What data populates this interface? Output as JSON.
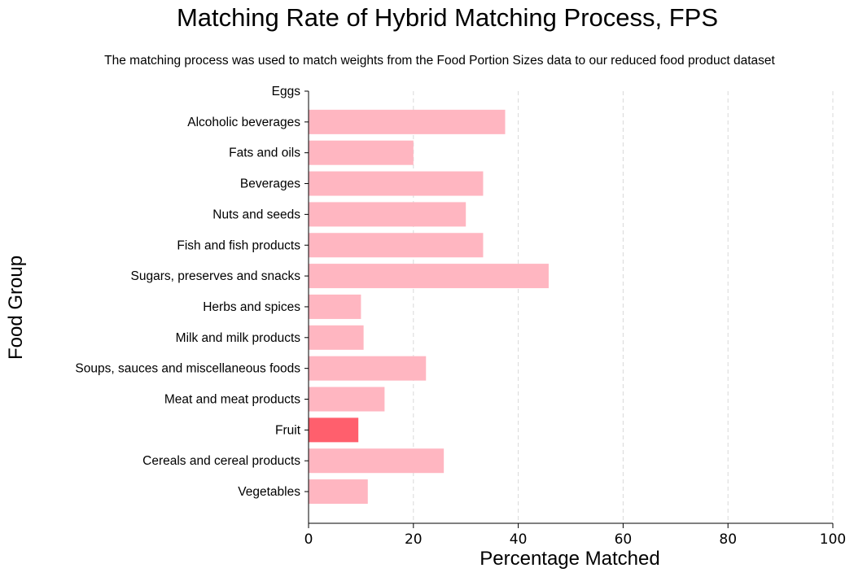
{
  "chart_data": {
    "type": "bar",
    "orientation": "horizontal",
    "title": "Matching Rate of Hybrid Matching Process, FPS",
    "subtitle": "The matching process was used to match weights from the Food Portion Sizes data to our reduced food product dataset",
    "xlabel": "Percentage Matched",
    "ylabel": "Food Group",
    "xlim": [
      0,
      100
    ],
    "xticks": [
      0,
      20,
      40,
      60,
      80,
      100
    ],
    "grid": "x-dashed",
    "categories": [
      "Eggs",
      "Alcoholic beverages",
      "Fats and oils",
      "Beverages",
      "Nuts and seeds",
      "Fish and fish products",
      "Sugars, preserves and snacks",
      "Herbs and spices",
      "Milk and milk products",
      "Soups, sauces and miscellaneous foods",
      "Meat and meat products",
      "Fruit",
      "Cereals and cereal products",
      "Vegetables"
    ],
    "values": [
      0,
      37.5,
      20,
      33.3,
      30,
      33.3,
      45.8,
      10,
      10.5,
      22.4,
      14.5,
      9.5,
      25.8,
      11.3
    ],
    "highlight": "Fruit",
    "colors": {
      "bar": "#ffb6c1",
      "highlight": "#ff5f6d",
      "grid": "#d9d9d9",
      "axis": "#000000"
    }
  }
}
